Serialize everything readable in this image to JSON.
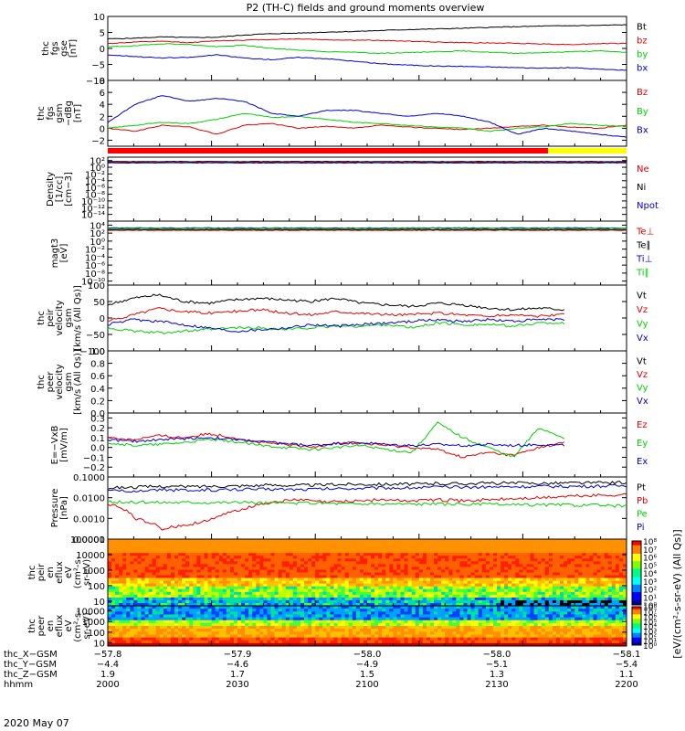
{
  "title": "P2 (TH-C) fields and ground moments overview",
  "date_label": "2020 May 07",
  "colors": {
    "black": "#000000",
    "red": "#e00000",
    "green": "#00d000",
    "blue": "#0000d0",
    "yellow": "#ffff00",
    "bar_red": "#ff0000"
  },
  "chart_data": [
    {
      "id": "fgs_gse",
      "type": "line",
      "ylabel": [
        "thc",
        "fgs",
        "gse",
        "[nT]"
      ],
      "ylim": [
        -10,
        10
      ],
      "ytick_labels": [
        "10",
        "5",
        "0",
        "−5",
        "−10"
      ],
      "yticks": [
        10,
        5,
        0,
        -5,
        -10
      ],
      "series": [
        {
          "name": "Bt",
          "color": "black",
          "values": [
            3.0,
            3.2,
            3.6,
            3.4,
            3.5,
            4.2,
            4.6,
            4.8,
            5.1,
            5.3,
            5.6,
            5.9,
            6.1,
            6.3,
            6.6,
            6.8,
            7.0,
            7.1,
            7.2,
            7.4
          ]
        },
        {
          "name": "bz",
          "color": "red",
          "values": [
            1.5,
            2.0,
            2.2,
            1.8,
            2.4,
            2.6,
            2.8,
            3.0,
            2.7,
            2.6,
            2.5,
            2.3,
            2.0,
            1.8,
            1.7,
            1.6,
            1.4,
            1.2,
            1.5,
            1.6
          ]
        },
        {
          "name": "by",
          "color": "green",
          "values": [
            0.5,
            0.8,
            1.5,
            1.2,
            0.5,
            1.0,
            0.0,
            -0.5,
            -1.0,
            -1.2,
            -1.5,
            -1.3,
            -1.0,
            -0.8,
            -1.2,
            -1.5,
            -1.3,
            -1.0,
            -0.8,
            -1.2
          ]
        },
        {
          "name": "bx",
          "color": "blue",
          "values": [
            -2.0,
            -2.5,
            -3.0,
            -2.8,
            -2.0,
            -3.0,
            -3.5,
            -2.8,
            -3.2,
            -4.0,
            -4.8,
            -5.2,
            -5.5,
            -5.6,
            -5.8,
            -6.0,
            -6.2,
            -6.0,
            -6.5,
            -6.8
          ]
        }
      ]
    },
    {
      "id": "fgs_gsm",
      "type": "line",
      "ylabel": [
        "thc",
        "fgs",
        "gsm",
        "−dBg",
        "[nT]"
      ],
      "ylim": [
        -3,
        8
      ],
      "ytick_labels": [
        "8",
        "6",
        "4",
        "2",
        "0",
        "−2"
      ],
      "yticks": [
        8,
        6,
        4,
        2,
        0,
        -2
      ],
      "series": [
        {
          "name": "Bz",
          "color": "red",
          "values": [
            0.0,
            -0.5,
            0.5,
            0.2,
            -1.0,
            0.5,
            0.8,
            0.0,
            0.3,
            0.0,
            0.5,
            0.2,
            0.0,
            -0.2,
            0.0,
            0.3,
            0.5,
            0.2,
            0.0,
            0.5
          ]
        },
        {
          "name": "By",
          "color": "green",
          "values": [
            0.0,
            0.5,
            1.0,
            0.8,
            1.5,
            2.5,
            1.8,
            2.0,
            1.5,
            1.0,
            0.8,
            0.5,
            0.2,
            0.0,
            -0.5,
            0.0,
            0.3,
            0.8,
            0.5,
            0.3
          ]
        },
        {
          "name": "Bx",
          "color": "blue",
          "values": [
            1.0,
            4.0,
            5.5,
            4.5,
            5.0,
            4.5,
            2.5,
            2.0,
            3.0,
            3.0,
            2.5,
            2.0,
            2.5,
            2.0,
            1.0,
            -1.0,
            0.0,
            -0.5,
            -1.0,
            -1.5
          ]
        }
      ]
    },
    {
      "id": "density",
      "type": "line",
      "ylabel": [
        "Density",
        "[1/cc]",
        "[cm−3]"
      ],
      "ylog": true,
      "ylim": [
        1e-16,
        1000
      ],
      "ytick_labels": [
        "10²",
        "10⁰",
        "10⁻²",
        "10⁻⁴",
        "10⁻⁶",
        "10⁻⁸",
        "10⁻¹⁰",
        "10⁻¹²",
        "10⁻¹⁴"
      ],
      "yticks": [
        100,
        1,
        0.01,
        0.0001,
        1e-06,
        1e-08,
        1e-10,
        1e-12,
        1e-14
      ],
      "series": [
        {
          "name": "Ne",
          "color": "red",
          "values": [
            30,
            30,
            30,
            30,
            30,
            30,
            30,
            30,
            30,
            30,
            30,
            30,
            30,
            30,
            30,
            30,
            30,
            30,
            30,
            30
          ]
        },
        {
          "name": "Ni",
          "color": "black",
          "values": [
            50,
            50,
            50,
            50,
            50,
            50,
            50,
            50,
            50,
            50,
            50,
            50,
            50,
            50,
            50,
            50,
            50,
            50,
            50,
            50
          ]
        },
        {
          "name": "Npot",
          "color": "blue",
          "values": [
            20,
            20,
            20,
            20,
            20,
            20,
            20,
            20,
            20,
            20,
            20,
            20,
            20,
            20,
            20,
            20,
            20,
            20,
            20,
            20
          ]
        }
      ]
    },
    {
      "id": "temperature",
      "type": "line",
      "ylabel": [
        "magt3",
        "[eV]"
      ],
      "ylog": true,
      "ylim": [
        1e-11,
        100000.0
      ],
      "ytick_labels": [
        "10⁴",
        "10²",
        "10⁰",
        "10⁻²",
        "10⁻⁴",
        "10⁻⁶",
        "10⁻⁸",
        "10⁻¹⁰"
      ],
      "yticks": [
        10000,
        100,
        1,
        0.01,
        0.0001,
        1e-06,
        1e-08,
        1e-10
      ],
      "series": [
        {
          "name": "Te⊥",
          "color": "red",
          "values": [
            500,
            500,
            500,
            500,
            500,
            500,
            500,
            500,
            500,
            500,
            500,
            500,
            500,
            500,
            500,
            500,
            500,
            500,
            500,
            500
          ]
        },
        {
          "name": "Te∥",
          "color": "black",
          "values": [
            800,
            800,
            800,
            800,
            800,
            800,
            800,
            800,
            800,
            800,
            800,
            800,
            800,
            800,
            800,
            800,
            800,
            800,
            800,
            800
          ]
        },
        {
          "name": "Ti⊥",
          "color": "blue",
          "values": [
            2000,
            2000,
            2000,
            2000,
            2000,
            2000,
            2000,
            2000,
            2000,
            2000,
            2000,
            2000,
            2000,
            2000,
            2000,
            2000,
            2000,
            2000,
            2000,
            2000
          ]
        },
        {
          "name": "Ti∥",
          "color": "green",
          "values": [
            1500,
            1500,
            1500,
            1500,
            1500,
            1500,
            1500,
            1500,
            1500,
            1500,
            1500,
            1500,
            1500,
            1500,
            1500,
            1500,
            1500,
            1500,
            1500,
            1500
          ]
        }
      ]
    },
    {
      "id": "peir_velocity",
      "type": "line",
      "ylabel": [
        "thc",
        "peir",
        "velocity",
        "gsm",
        "[km/s (All Qs)]"
      ],
      "ylim": [
        -100,
        100
      ],
      "ytick_labels": [
        "100",
        "50",
        "0",
        "−50",
        "−100"
      ],
      "yticks": [
        100,
        50,
        0,
        -50,
        -100
      ],
      "series": [
        {
          "name": "Vt",
          "color": "black",
          "values": [
            40,
            60,
            70,
            50,
            45,
            55,
            60,
            55,
            50,
            60,
            45,
            40,
            35,
            45,
            40,
            30,
            25,
            30,
            25
          ]
        },
        {
          "name": "Vz",
          "color": "red",
          "values": [
            -10,
            10,
            30,
            20,
            15,
            20,
            25,
            15,
            10,
            20,
            15,
            10,
            10,
            15,
            10,
            5,
            10,
            5,
            10
          ]
        },
        {
          "name": "Vy",
          "color": "green",
          "values": [
            -30,
            -40,
            -45,
            -40,
            -35,
            -30,
            -30,
            -35,
            -30,
            -25,
            -25,
            -20,
            -30,
            -15,
            -20,
            -20,
            -25,
            -15,
            -15
          ]
        },
        {
          "name": "Vx",
          "color": "blue",
          "values": [
            -20,
            -5,
            -10,
            -20,
            -30,
            -40,
            -35,
            -30,
            -20,
            -25,
            -20,
            -15,
            -10,
            -5,
            -10,
            -5,
            -10,
            -5,
            -5
          ]
        }
      ]
    },
    {
      "id": "peer_velocity",
      "type": "line",
      "ylabel": [
        "thc",
        "peer",
        "velocity",
        "gsm",
        "[km/s (All Qs)]"
      ],
      "ylim": [
        0,
        1
      ],
      "ytick_labels": [
        "1.0",
        "0.8",
        "0.6",
        "0.4",
        "0.2",
        "0.0"
      ],
      "yticks": [
        1.0,
        0.8,
        0.6,
        0.4,
        0.2,
        0.0
      ],
      "series": [
        {
          "name": "Vt",
          "color": "black",
          "values": []
        },
        {
          "name": "Vz",
          "color": "red",
          "values": []
        },
        {
          "name": "Vy",
          "color": "green",
          "values": []
        },
        {
          "name": "Vx",
          "color": "blue",
          "values": []
        }
      ]
    },
    {
      "id": "efield",
      "type": "line",
      "ylabel": [
        "E=−VxB",
        "[mV/m]"
      ],
      "ylim": [
        -0.3,
        0.35
      ],
      "ytick_labels": [
        "0.3",
        "0.2",
        "0.1",
        "0.0",
        "−0.1",
        "−0.2"
      ],
      "yticks": [
        0.3,
        0.2,
        0.1,
        0.0,
        -0.1,
        -0.2
      ],
      "series": [
        {
          "name": "Ez",
          "color": "red",
          "values": [
            0.1,
            0.08,
            0.12,
            0.1,
            0.14,
            0.1,
            0.05,
            0.03,
            0.0,
            0.05,
            0.04,
            0.02,
            0.0,
            -0.02,
            -0.1,
            -0.05,
            -0.08,
            0.0,
            0.05
          ]
        },
        {
          "name": "Ey",
          "color": "green",
          "values": [
            0.05,
            0.02,
            0.03,
            0.05,
            0.08,
            0.06,
            0.02,
            0.0,
            -0.02,
            0.0,
            0.02,
            -0.02,
            -0.05,
            0.25,
            0.1,
            0.0,
            -0.1,
            0.2,
            0.1
          ]
        },
        {
          "name": "Ex",
          "color": "blue",
          "values": [
            0.08,
            0.06,
            0.08,
            0.09,
            0.1,
            0.08,
            0.06,
            0.04,
            0.02,
            0.04,
            0.05,
            0.03,
            0.02,
            0.03,
            0.02,
            0.03,
            0.02,
            0.03,
            0.02
          ]
        }
      ]
    },
    {
      "id": "pressure",
      "type": "line",
      "ylabel": [
        "Pressure",
        "[nPa]"
      ],
      "ylog": true,
      "ylim": [
        0.0001,
        0.1
      ],
      "ytick_labels": [
        "0.1000",
        "0.0100",
        "0.0010",
        "0.0001"
      ],
      "yticks": [
        0.1,
        0.01,
        0.001,
        0.0001
      ],
      "series": [
        {
          "name": "Pt",
          "color": "black",
          "values": [
            0.03,
            0.032,
            0.035,
            0.034,
            0.036,
            0.038,
            0.04,
            0.04,
            0.042,
            0.045,
            0.045,
            0.046,
            0.048,
            0.048,
            0.05,
            0.05,
            0.05,
            0.052,
            0.052,
            0.055
          ]
        },
        {
          "name": "Pb",
          "color": "red",
          "values": [
            0.005,
            0.001,
            0.0003,
            0.0005,
            0.001,
            0.003,
            0.006,
            0.008,
            0.006,
            0.007,
            0.008,
            0.007,
            0.008,
            0.007,
            0.008,
            0.009,
            0.01,
            0.012,
            0.013,
            0.014
          ]
        },
        {
          "name": "Pe",
          "color": "green",
          "values": [
            0.006,
            0.006,
            0.006,
            0.006,
            0.006,
            0.006,
            0.0055,
            0.0055,
            0.0055,
            0.005,
            0.005,
            0.005,
            0.005,
            0.0048,
            0.0048,
            0.0045,
            0.0045,
            0.0045,
            0.0042,
            0.004
          ]
        },
        {
          "name": "Pi",
          "color": "blue",
          "values": [
            0.02,
            0.022,
            0.024,
            0.022,
            0.024,
            0.025,
            0.026,
            0.025,
            0.027,
            0.028,
            0.03,
            0.03,
            0.032,
            0.032,
            0.033,
            0.034,
            0.035,
            0.035,
            0.036,
            0.038
          ]
        }
      ]
    },
    {
      "id": "peir_spec",
      "type": "heatmap",
      "ylabel": [
        "thc",
        "peir",
        "en",
        "eflux",
        "eV",
        "(cm²-s-",
        "sr-eV)"
      ],
      "ylog": true,
      "ylim": [
        5,
        100000.0
      ],
      "ytick_labels": [
        "100000",
        "10000",
        "1000",
        "100",
        "10"
      ],
      "yticks": [
        100000,
        10000,
        1000,
        100,
        10
      ]
    },
    {
      "id": "peer_spec",
      "type": "heatmap",
      "ylabel": [
        "thc",
        "peer",
        "en",
        "eflux",
        "eV",
        "(cm²-s-",
        "sr-eV)"
      ],
      "ylog": true,
      "ylim": [
        5,
        30000
      ],
      "ytick_labels": [
        "10000",
        "1000",
        "100",
        "10"
      ],
      "yticks": [
        10000,
        1000,
        100,
        10
      ]
    }
  ],
  "colorbar": {
    "label": "[eV/(cm²-s-sr-eV) (All Qs)]",
    "upper_ticks": [
      "10⁸",
      "10⁷",
      "10⁶",
      "10⁵",
      "10⁴",
      "10³",
      "10²",
      "10¹",
      "10⁰"
    ],
    "lower_ticks": [
      "10⁸",
      "10⁷",
      "10⁶",
      "10⁵",
      "10⁴",
      "10³",
      "10²",
      "10¹",
      "10⁰"
    ]
  },
  "xaxis": {
    "rows": [
      {
        "label": "thc_X−GSM",
        "values": [
          "−57.8",
          "−57.9",
          "−58.0",
          "−58.0",
          "−58.1"
        ]
      },
      {
        "label": "thc_Y−GSM",
        "values": [
          "−4.4",
          "−4.6",
          "−4.9",
          "−5.1",
          "−5.4"
        ]
      },
      {
        "label": "thc_Z−GSM",
        "values": [
          "1.9",
          "1.7",
          "1.5",
          "1.3",
          "1.1"
        ]
      },
      {
        "label": "hhmm",
        "values": [
          "2000",
          "2030",
          "2100",
          "2130",
          "2200"
        ]
      }
    ]
  }
}
